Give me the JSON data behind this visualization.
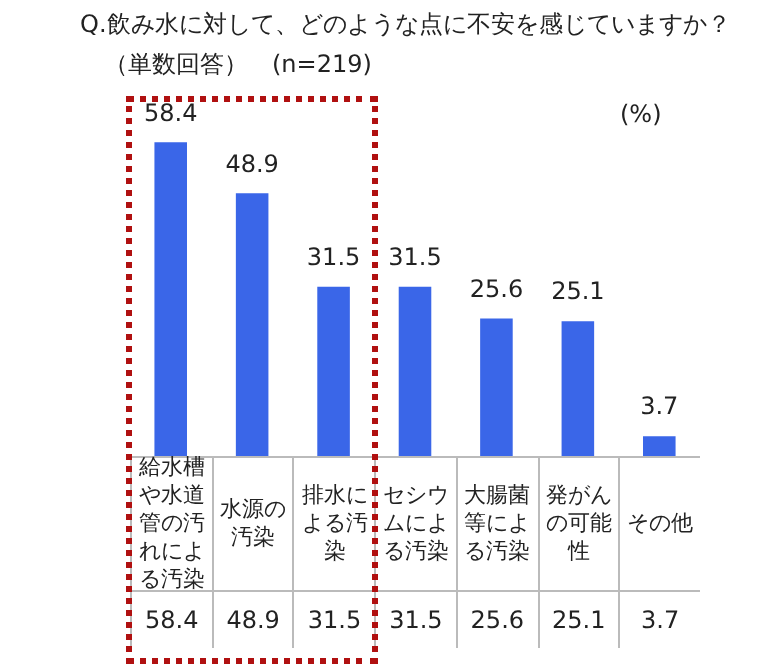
{
  "chart_data": {
    "type": "bar",
    "title": "Q.飲み水に対して、どのような点に不安を感じていますか？",
    "subtitle": "（単数回答）　(n=219)",
    "annotations": [
      "(%)",
      "58.4",
      "48.9",
      "31.5",
      "31.5",
      "25.6",
      "25.1",
      "3.7"
    ],
    "categories": [
      "給水槽や水道管の汚れによる汚染",
      "水源の汚染",
      "排水による汚染",
      "セシウムによる汚染",
      "大腸菌等による汚染",
      "発がんの可能性",
      "その他"
    ],
    "values": [
      58.4,
      48.9,
      31.5,
      31.5,
      25.6,
      25.1,
      3.7
    ],
    "color": "#3a66e8",
    "data_labels": true
  }
}
